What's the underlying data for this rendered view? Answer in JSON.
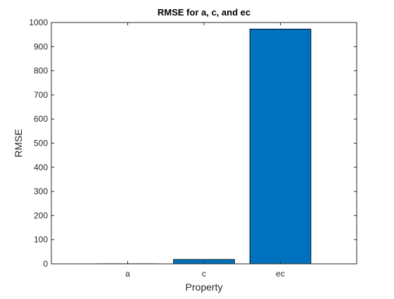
{
  "chart_data": {
    "type": "bar",
    "title": "RMSE for a, c, and ec",
    "xlabel": "Property",
    "ylabel": "RMSE",
    "categories": [
      "a",
      "c",
      "ec"
    ],
    "values": [
      0.6,
      18,
      973
    ],
    "ylim": [
      0,
      1000
    ],
    "yticks": [
      0,
      100,
      200,
      300,
      400,
      500,
      600,
      700,
      800,
      900,
      1000
    ],
    "ytick_labels": [
      "0",
      "100",
      "200",
      "300",
      "400",
      "500",
      "600",
      "700",
      "800",
      "900",
      "1000"
    ],
    "xlim": [
      0.0,
      4.0
    ],
    "bar_color": "#0072BD",
    "grid": false,
    "legend": "none"
  }
}
